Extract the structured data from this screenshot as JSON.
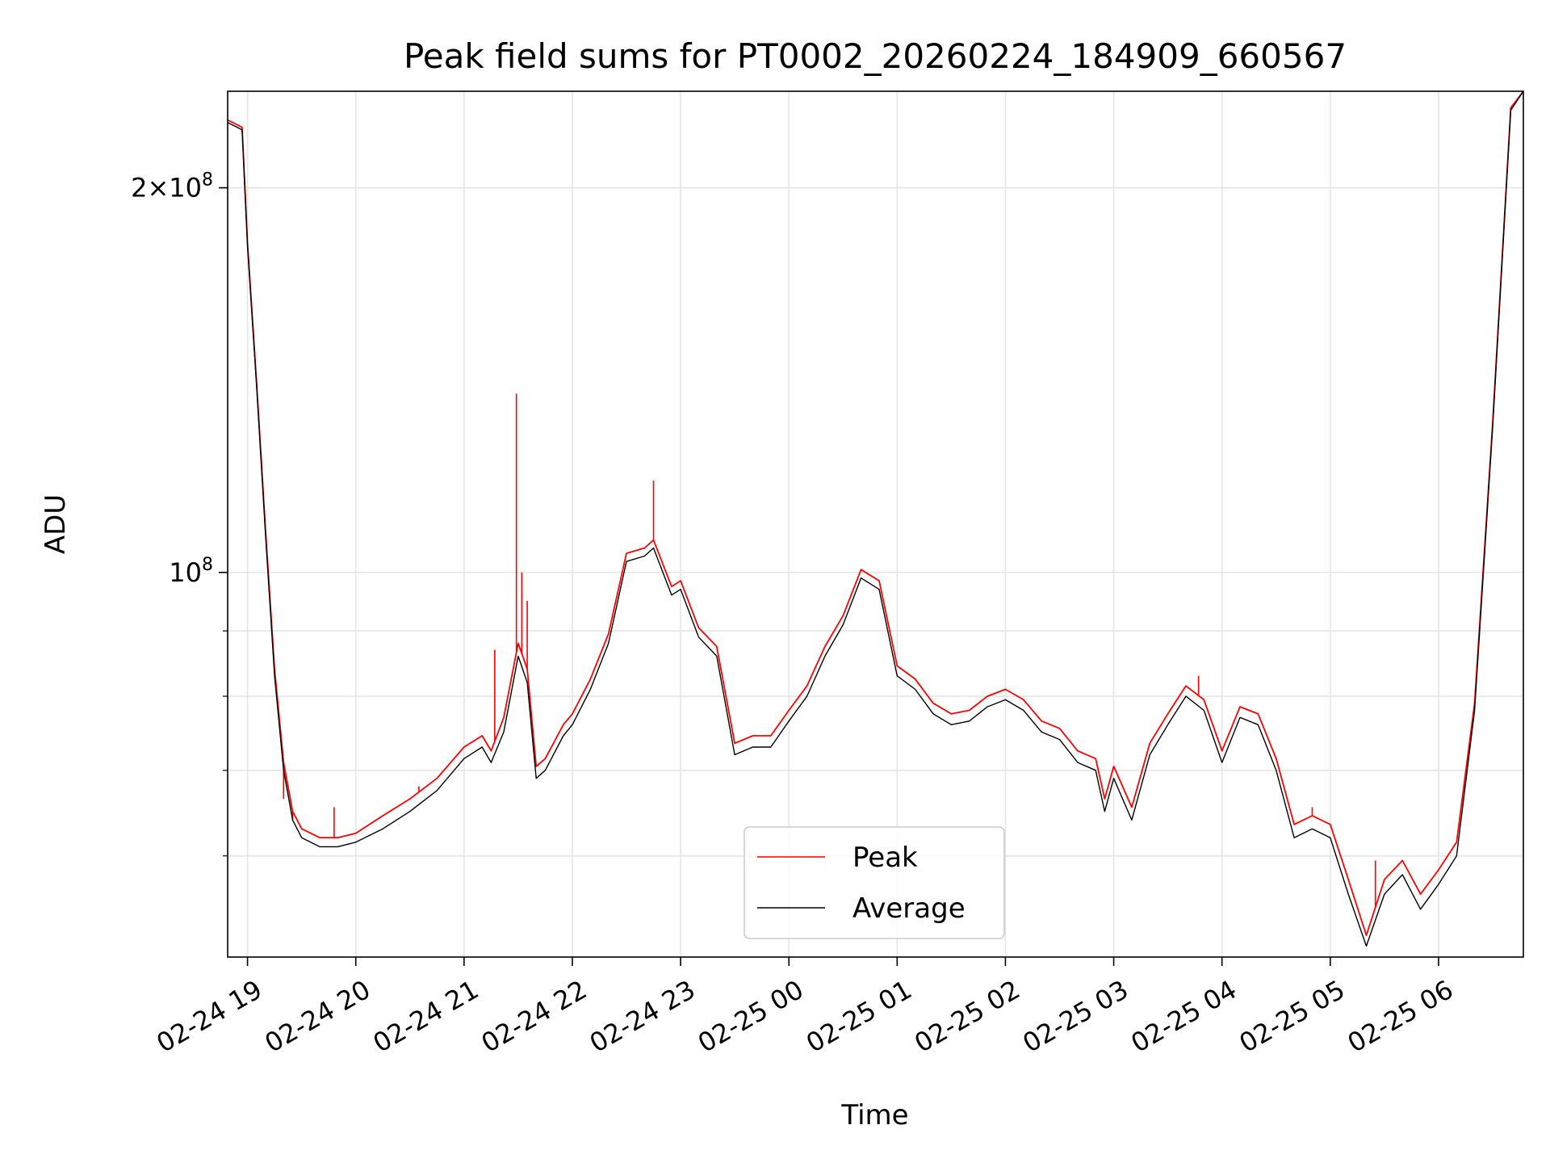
{
  "chart_data": {
    "type": "line",
    "title": "Peak field sums for PT0002_20260224_184909_660567",
    "xlabel": "Time",
    "ylabel": "ADU",
    "xlim": [
      "2026-02-24 18:49",
      "2026-02-25 06:47"
    ],
    "ylim": [
      50000000,
      238000000
    ],
    "y_scale": "log",
    "grid": true,
    "legend_position": "lower-center",
    "x_ticks": [
      "02-24 19",
      "02-24 20",
      "02-24 21",
      "02-24 22",
      "02-24 23",
      "02-25 00",
      "02-25 01",
      "02-25 02",
      "02-25 03",
      "02-25 04",
      "02-25 05",
      "02-25 06"
    ],
    "y_tick_labels": [
      {
        "value": 100000000,
        "label": "10^8"
      },
      {
        "value": 200000000,
        "label": "2×10^8"
      }
    ],
    "y_minor_ticks": [
      60000000,
      70000000,
      80000000,
      90000000
    ],
    "series": [
      {
        "name": "Average",
        "color": "#000000",
        "x": [
          "2026-02-24 18:49",
          "2026-02-24 18:57",
          "2026-02-24 19:00",
          "2026-02-24 19:05",
          "2026-02-24 19:10",
          "2026-02-24 19:15",
          "2026-02-24 19:20",
          "2026-02-24 19:25",
          "2026-02-24 19:30",
          "2026-02-24 19:40",
          "2026-02-24 19:50",
          "2026-02-24 20:00",
          "2026-02-24 20:15",
          "2026-02-24 20:30",
          "2026-02-24 20:45",
          "2026-02-24 21:00",
          "2026-02-24 21:10",
          "2026-02-24 21:15",
          "2026-02-24 21:22",
          "2026-02-24 21:30",
          "2026-02-24 21:35",
          "2026-02-24 21:40",
          "2026-02-24 21:45",
          "2026-02-24 21:55",
          "2026-02-24 22:00",
          "2026-02-24 22:10",
          "2026-02-24 22:20",
          "2026-02-24 22:30",
          "2026-02-24 22:40",
          "2026-02-24 22:45",
          "2026-02-24 22:55",
          "2026-02-24 23:00",
          "2026-02-24 23:10",
          "2026-02-24 23:20",
          "2026-02-24 23:30",
          "2026-02-24 23:40",
          "2026-02-24 23:50",
          "2026-02-25 00:00",
          "2026-02-25 00:10",
          "2026-02-25 00:20",
          "2026-02-25 00:30",
          "2026-02-25 00:40",
          "2026-02-25 00:50",
          "2026-02-25 01:00",
          "2026-02-25 01:10",
          "2026-02-25 01:20",
          "2026-02-25 01:30",
          "2026-02-25 01:40",
          "2026-02-25 01:50",
          "2026-02-25 02:00",
          "2026-02-25 02:10",
          "2026-02-25 02:20",
          "2026-02-25 02:30",
          "2026-02-25 02:40",
          "2026-02-25 02:50",
          "2026-02-25 02:55",
          "2026-02-25 03:00",
          "2026-02-25 03:10",
          "2026-02-25 03:20",
          "2026-02-25 03:30",
          "2026-02-25 03:40",
          "2026-02-25 03:50",
          "2026-02-25 04:00",
          "2026-02-25 04:10",
          "2026-02-25 04:20",
          "2026-02-25 04:30",
          "2026-02-25 04:40",
          "2026-02-25 04:50",
          "2026-02-25 05:00",
          "2026-02-25 05:10",
          "2026-02-25 05:20",
          "2026-02-25 05:30",
          "2026-02-25 05:40",
          "2026-02-25 05:50",
          "2026-02-25 06:00",
          "2026-02-25 06:10",
          "2026-02-25 06:20",
          "2026-02-25 06:30",
          "2026-02-25 06:40",
          "2026-02-25 06:47"
        ],
        "y": [
          225000000,
          222000000,
          180000000,
          140000000,
          107000000,
          83000000,
          70000000,
          64000000,
          62000000,
          61000000,
          61000000,
          61500000,
          63000000,
          65000000,
          67500000,
          71500000,
          73000000,
          71000000,
          75000000,
          86000000,
          82000000,
          69000000,
          70000000,
          74500000,
          76000000,
          81000000,
          88000000,
          102000000,
          103000000,
          104500000,
          96000000,
          97000000,
          89000000,
          86000000,
          72000000,
          73000000,
          73000000,
          76500000,
          80000000,
          86000000,
          91000000,
          99000000,
          97000000,
          83000000,
          81000000,
          77500000,
          76000000,
          76500000,
          78500000,
          79500000,
          78000000,
          75000000,
          74000000,
          71000000,
          70000000,
          65000000,
          69000000,
          64000000,
          72000000,
          76000000,
          80000000,
          78000000,
          71000000,
          77000000,
          76000000,
          70000000,
          62000000,
          63000000,
          62000000,
          56000000,
          51000000,
          56000000,
          58000000,
          54500000,
          57000000,
          60000000,
          78000000,
          130000000,
          230000000,
          238000000
        ]
      },
      {
        "name": "Peak",
        "color": "#ff0000",
        "x": [
          "2026-02-24 18:49",
          "2026-02-24 18:57",
          "2026-02-24 19:00",
          "2026-02-24 19:05",
          "2026-02-24 19:10",
          "2026-02-24 19:15",
          "2026-02-24 19:20",
          "2026-02-24 19:25",
          "2026-02-24 19:30",
          "2026-02-24 19:40",
          "2026-02-24 19:50",
          "2026-02-24 20:00",
          "2026-02-24 20:15",
          "2026-02-24 20:30",
          "2026-02-24 20:45",
          "2026-02-24 21:00",
          "2026-02-24 21:10",
          "2026-02-24 21:15",
          "2026-02-24 21:22",
          "2026-02-24 21:30",
          "2026-02-24 21:35",
          "2026-02-24 21:40",
          "2026-02-24 21:45",
          "2026-02-24 21:55",
          "2026-02-24 22:00",
          "2026-02-24 22:10",
          "2026-02-24 22:20",
          "2026-02-24 22:30",
          "2026-02-24 22:40",
          "2026-02-24 22:45",
          "2026-02-24 22:55",
          "2026-02-24 23:00",
          "2026-02-24 23:10",
          "2026-02-24 23:20",
          "2026-02-24 23:30",
          "2026-02-24 23:40",
          "2026-02-24 23:50",
          "2026-02-25 00:00",
          "2026-02-25 00:10",
          "2026-02-25 00:20",
          "2026-02-25 00:30",
          "2026-02-25 00:40",
          "2026-02-25 00:50",
          "2026-02-25 01:00",
          "2026-02-25 01:10",
          "2026-02-25 01:20",
          "2026-02-25 01:30",
          "2026-02-25 01:40",
          "2026-02-25 01:50",
          "2026-02-25 02:00",
          "2026-02-25 02:10",
          "2026-02-25 02:20",
          "2026-02-25 02:30",
          "2026-02-25 02:40",
          "2026-02-25 02:50",
          "2026-02-25 02:55",
          "2026-02-25 03:00",
          "2026-02-25 03:10",
          "2026-02-25 03:20",
          "2026-02-25 03:30",
          "2026-02-25 03:40",
          "2026-02-25 03:50",
          "2026-02-25 04:00",
          "2026-02-25 04:10",
          "2026-02-25 04:20",
          "2026-02-25 04:30",
          "2026-02-25 04:40",
          "2026-02-25 04:50",
          "2026-02-25 05:00",
          "2026-02-25 05:10",
          "2026-02-25 05:20",
          "2026-02-25 05:30",
          "2026-02-25 05:40",
          "2026-02-25 05:50",
          "2026-02-25 06:00",
          "2026-02-25 06:10",
          "2026-02-25 06:20",
          "2026-02-25 06:30",
          "2026-02-25 06:40",
          "2026-02-25 06:47"
        ],
        "y": [
          226000000,
          223000000,
          181000000,
          141000000,
          108000000,
          84000000,
          71000000,
          65000000,
          63000000,
          62000000,
          62000000,
          62500000,
          64500000,
          66500000,
          69000000,
          73000000,
          74500000,
          72500000,
          77000000,
          88000000,
          84000000,
          70500000,
          71500000,
          76000000,
          77500000,
          82500000,
          89500000,
          103500000,
          104500000,
          106000000,
          97500000,
          98500000,
          90500000,
          87500000,
          73500000,
          74500000,
          74500000,
          78000000,
          81500000,
          87500000,
          92500000,
          100500000,
          98500000,
          84500000,
          82500000,
          79000000,
          77500000,
          78000000,
          80000000,
          81000000,
          79500000,
          76500000,
          75500000,
          72500000,
          71500000,
          66500000,
          70500000,
          65500000,
          73500000,
          77500000,
          81500000,
          79500000,
          72500000,
          78500000,
          77500000,
          71500000,
          63500000,
          64500000,
          63500000,
          57500000,
          52000000,
          57500000,
          59500000,
          56000000,
          58500000,
          61500000,
          79000000,
          131000000,
          231000000,
          238000000
        ],
        "spikes": [
          {
            "x": "2026-02-24 19:20",
            "y": 66500000
          },
          {
            "x": "2026-02-24 19:25",
            "y": 64000000
          },
          {
            "x": "2026-02-24 19:48",
            "y": 65500000
          },
          {
            "x": "2026-02-24 20:35",
            "y": 68000000
          },
          {
            "x": "2026-02-24 21:17",
            "y": 87000000
          },
          {
            "x": "2026-02-24 21:29",
            "y": 138000000
          },
          {
            "x": "2026-02-24 21:32",
            "y": 100000000
          },
          {
            "x": "2026-02-24 21:35",
            "y": 95000000
          },
          {
            "x": "2026-02-24 22:45",
            "y": 118000000
          },
          {
            "x": "2026-02-25 03:47",
            "y": 83000000
          },
          {
            "x": "2026-02-25 04:50",
            "y": 65500000
          },
          {
            "x": "2026-02-25 05:25",
            "y": 59500000
          }
        ]
      }
    ]
  }
}
